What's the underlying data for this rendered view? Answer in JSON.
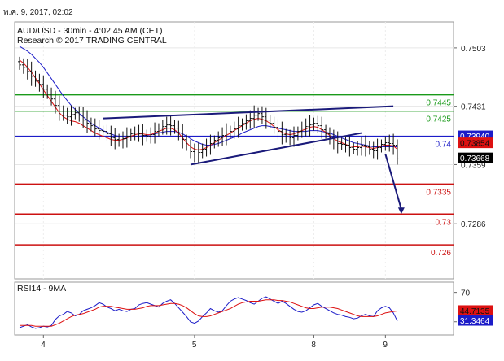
{
  "date_header": "พ.ค. 9, 2017, 02:02",
  "chart_data": [
    {
      "type": "candlestick",
      "title": "AUD/USD - 30min - 4:02:45 AM (CET)",
      "subtitle": "Research © 2017 TRADING CENTRAL",
      "y_ticks": [
        "0.7503",
        "0.7431",
        "0.7359",
        "0.7286"
      ],
      "x_ticks": [
        "4",
        "5",
        "8",
        "9"
      ],
      "ylim": [
        0.7218,
        0.7535
      ],
      "grid": true,
      "levels": [
        {
          "value": 0.7445,
          "label": "0.7445",
          "color": "#1a9a1a"
        },
        {
          "value": 0.7425,
          "label": "0.7425",
          "color": "#1a9a1a"
        },
        {
          "value": 0.7394,
          "label": "0.74",
          "color": "#1c1cc8"
        },
        {
          "value": 0.7335,
          "label": "0.7335",
          "color": "#cc1111"
        },
        {
          "value": 0.7298,
          "label": "0.73",
          "color": "#cc1111"
        },
        {
          "value": 0.726,
          "label": "0.726",
          "color": "#cc1111"
        }
      ],
      "badges": [
        {
          "value": 0.7394,
          "label": "0.73940",
          "bg": "#1c1cc8",
          "fg": "#ffffff"
        },
        {
          "value": 0.73854,
          "label": "0.73854",
          "bg": "#dd1111",
          "fg": "#111111"
        },
        {
          "value": 0.73668,
          "label": "0.73668",
          "bg": "#000000",
          "fg": "#ffffff"
        }
      ],
      "closes": [
        0.7482,
        0.7479,
        0.7474,
        0.7468,
        0.7462,
        0.7458,
        0.7452,
        0.7446,
        0.744,
        0.7432,
        0.7425,
        0.742,
        0.7418,
        0.7421,
        0.7423,
        0.742,
        0.7414,
        0.741,
        0.7407,
        0.7403,
        0.7401,
        0.74,
        0.7397,
        0.7392,
        0.739,
        0.7388,
        0.7391,
        0.7394,
        0.7397,
        0.7398,
        0.7397,
        0.7395,
        0.7394,
        0.7396,
        0.74,
        0.7404,
        0.7406,
        0.7408,
        0.7407,
        0.7404,
        0.7398,
        0.739,
        0.7382,
        0.7375,
        0.7372,
        0.7374,
        0.7378,
        0.7382,
        0.7385,
        0.7389,
        0.7392,
        0.7395,
        0.7398,
        0.74,
        0.7403,
        0.7407,
        0.741,
        0.7413,
        0.7416,
        0.742,
        0.7422,
        0.7418,
        0.7414,
        0.741,
        0.7405,
        0.74,
        0.7396,
        0.7393,
        0.7392,
        0.7395,
        0.74,
        0.7404,
        0.7406,
        0.7408,
        0.741,
        0.7407,
        0.7402,
        0.7397,
        0.7392,
        0.7388,
        0.7385,
        0.7384,
        0.7383,
        0.738,
        0.7378,
        0.738,
        0.7383,
        0.7381,
        0.7378,
        0.7376,
        0.738,
        0.7384,
        0.7386,
        0.7385,
        0.7383,
        0.7366
      ],
      "ma_fast": [
        0.7488,
        0.7484,
        0.7479,
        0.7473,
        0.7466,
        0.7459,
        0.7451,
        0.7444,
        0.7437,
        0.743,
        0.7423,
        0.7418,
        0.7415,
        0.7413,
        0.7412,
        0.741,
        0.7407,
        0.7404,
        0.7401,
        0.7398,
        0.7396,
        0.7394,
        0.7392,
        0.739,
        0.7389,
        0.7389,
        0.739,
        0.7392,
        0.7394,
        0.7396,
        0.7397,
        0.7397,
        0.7396,
        0.7396,
        0.7398,
        0.74,
        0.7402,
        0.7404,
        0.7404,
        0.7402,
        0.7398,
        0.7392,
        0.7386,
        0.7381,
        0.7378,
        0.7377,
        0.7378,
        0.738,
        0.7383,
        0.7386,
        0.7389,
        0.7392,
        0.7395,
        0.7398,
        0.7401,
        0.7404,
        0.7407,
        0.741,
        0.7413,
        0.7415,
        0.7416,
        0.7415,
        0.7413,
        0.741,
        0.7406,
        0.7402,
        0.7399,
        0.7397,
        0.7396,
        0.7397,
        0.7399,
        0.7401,
        0.7403,
        0.7405,
        0.7406,
        0.7405,
        0.7402,
        0.7399,
        0.7395,
        0.7391,
        0.7388,
        0.7386,
        0.7384,
        0.7382,
        0.7381,
        0.7381,
        0.7382,
        0.7381,
        0.738,
        0.7379,
        0.738,
        0.7382,
        0.7383,
        0.7383,
        0.7382,
        0.7378
      ],
      "ma_slow": [
        0.7505,
        0.7502,
        0.7499,
        0.7495,
        0.749,
        0.7485,
        0.7479,
        0.7472,
        0.7465,
        0.7458,
        0.7451,
        0.7444,
        0.7438,
        0.7432,
        0.7427,
        0.7422,
        0.7418,
        0.7414,
        0.741,
        0.7407,
        0.7404,
        0.7401,
        0.7399,
        0.7397,
        0.7395,
        0.7394,
        0.7393,
        0.7393,
        0.7393,
        0.7394,
        0.7394,
        0.7395,
        0.7395,
        0.7396,
        0.7397,
        0.7398,
        0.7399,
        0.74,
        0.74,
        0.74,
        0.7399,
        0.7397,
        0.7394,
        0.7391,
        0.7388,
        0.7386,
        0.7384,
        0.7383,
        0.7383,
        0.7384,
        0.7385,
        0.7387,
        0.7389,
        0.7391,
        0.7393,
        0.7395,
        0.7398,
        0.74,
        0.7402,
        0.7404,
        0.7406,
        0.7407,
        0.7407,
        0.7406,
        0.7405,
        0.7404,
        0.7403,
        0.7402,
        0.7401,
        0.74,
        0.74,
        0.74,
        0.74,
        0.7401,
        0.7401,
        0.7401,
        0.74,
        0.7399,
        0.7398,
        0.7396,
        0.7394,
        0.7392,
        0.739,
        0.7388,
        0.7386,
        0.7385,
        0.7384,
        0.7383,
        0.7382,
        0.7381,
        0.7381,
        0.7381,
        0.7381,
        0.7381,
        0.7381,
        0.7381
      ],
      "trendlines": [
        {
          "from_bar": 21,
          "from": 0.7416,
          "to_bar": 94,
          "to": 0.7431
        },
        {
          "from_bar": 43,
          "from": 0.7359,
          "to_bar": 86,
          "to": 0.7398
        }
      ],
      "forecast_arrow": {
        "from_bar": 92,
        "from": 0.7372,
        "to_bar": 96,
        "to": 0.7298
      }
    },
    {
      "type": "line",
      "title": "RSI14 - 9MA",
      "y_ticks": [
        "70",
        "30"
      ],
      "ylim": [
        12,
        84
      ],
      "badges": [
        {
          "value": 44.7135,
          "label": "44.7135",
          "bg": "#dd1111",
          "fg": "#111111"
        },
        {
          "value": 31.3464,
          "label": "31.3464",
          "bg": "#1c1cc8",
          "fg": "#ffffff"
        }
      ],
      "series": [
        {
          "color": "#1c1cc8",
          "values": [
            22,
            24,
            26,
            23,
            21,
            22,
            24,
            23,
            25,
            33,
            38,
            40,
            44,
            42,
            38,
            40,
            45,
            47,
            49,
            52,
            56,
            54,
            50,
            48,
            45,
            47,
            45,
            44,
            47,
            48,
            53,
            55,
            56,
            54,
            52,
            50,
            55,
            58,
            60,
            55,
            49,
            43,
            37,
            30,
            28,
            31,
            37,
            42,
            48,
            45,
            43,
            45,
            52,
            58,
            61,
            63,
            61,
            59,
            56,
            54,
            58,
            62,
            64,
            61,
            58,
            55,
            58,
            55,
            51,
            47,
            44,
            43,
            45,
            49,
            53,
            55,
            51,
            48,
            45,
            42,
            40,
            39,
            37,
            36,
            34,
            35,
            38,
            40,
            38,
            37,
            45,
            49,
            51,
            49,
            42,
            31
          ]
        },
        {
          "color": "#dd1111",
          "values": [
            25,
            25,
            25,
            25,
            24,
            24,
            24,
            24,
            24,
            26,
            28,
            31,
            34,
            37,
            39,
            40,
            41,
            43,
            45,
            47,
            50,
            51,
            51,
            51,
            50,
            49,
            48,
            47,
            47,
            47,
            48,
            49,
            51,
            52,
            52,
            52,
            53,
            54,
            55,
            55,
            54,
            52,
            49,
            45,
            41,
            38,
            37,
            37,
            38,
            40,
            42,
            44,
            46,
            48,
            51,
            54,
            56,
            57,
            58,
            58,
            58,
            59,
            60,
            60,
            60,
            59,
            59,
            58,
            57,
            55,
            53,
            51,
            49,
            48,
            48,
            49,
            50,
            50,
            50,
            49,
            48,
            46,
            44,
            42,
            40,
            38,
            37,
            37,
            37,
            37,
            38,
            40,
            42,
            43,
            44,
            44.7
          ]
        }
      ]
    }
  ]
}
